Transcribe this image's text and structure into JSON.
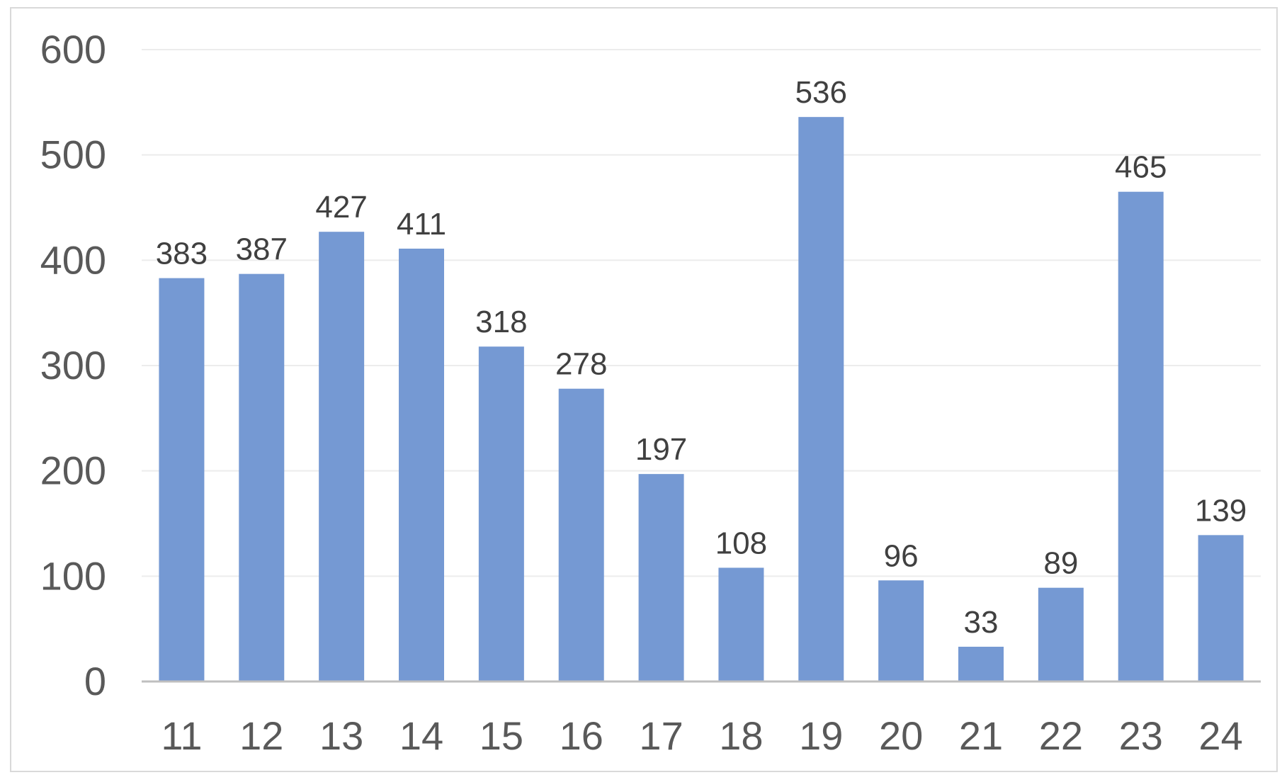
{
  "chart_data": {
    "type": "bar",
    "categories": [
      "11",
      "12",
      "13",
      "14",
      "15",
      "16",
      "17",
      "18",
      "19",
      "20",
      "21",
      "22",
      "23",
      "24"
    ],
    "values": [
      383,
      387,
      427,
      411,
      318,
      278,
      197,
      108,
      536,
      96,
      33,
      89,
      465,
      139
    ],
    "ylim": [
      0,
      600
    ],
    "yticks": [
      "0",
      "100",
      "200",
      "300",
      "400",
      "500",
      "600"
    ],
    "grid": true,
    "legend": "none",
    "colors": {
      "bar": "#7599d3",
      "grid": "#ececec",
      "axis": "#bfbfbf",
      "frame": "#d9d9d9"
    }
  }
}
